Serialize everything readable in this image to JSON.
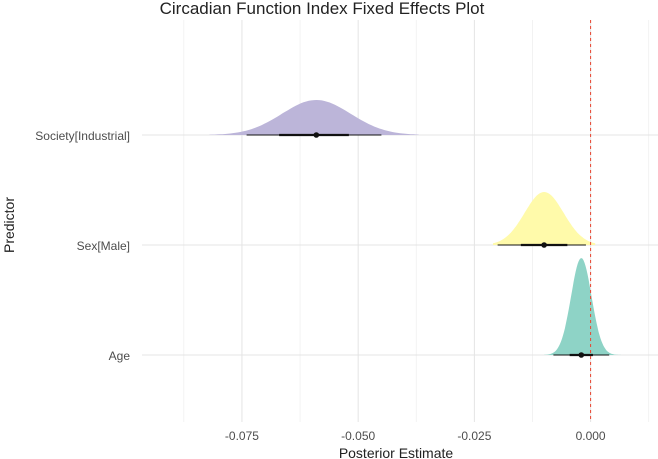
{
  "chart_data": {
    "type": "density",
    "title": "Circadian Function Index Fixed Effects Plot",
    "xlabel": "Posterior Estimate",
    "ylabel": "Predictor",
    "xlim": [
      -0.0965,
      0.0145
    ],
    "x_ticks": [
      -0.075,
      -0.05,
      -0.025,
      0.0
    ],
    "x_tick_labels": [
      "-0.075",
      "-0.050",
      "-0.025",
      "0.000"
    ],
    "reference_line": {
      "x": 0.0,
      "color": "#e8442f",
      "style": "dashed"
    },
    "grid": true,
    "legend": "none",
    "series": [
      {
        "predictor": "Society[Industrial]",
        "median": -0.059,
        "ci_inner": [
          -0.067,
          -0.052
        ],
        "ci_outer": [
          -0.074,
          -0.045
        ],
        "sd": 0.0074,
        "range": [
          -0.082,
          -0.037
        ],
        "color": "#bcb5d9"
      },
      {
        "predictor": "Sex[Male]",
        "median": -0.01,
        "ci_inner": [
          -0.015,
          -0.005
        ],
        "ci_outer": [
          -0.02,
          -0.001
        ],
        "sd": 0.0042,
        "range": [
          -0.021,
          0.001
        ],
        "color": "#fffaaa"
      },
      {
        "predictor": "Age",
        "median": -0.002,
        "ci_inner": [
          -0.0045,
          0.0005
        ],
        "ci_outer": [
          -0.008,
          0.004
        ],
        "sd": 0.0022,
        "range": [
          -0.01,
          0.007
        ],
        "color": "#8ed3c6"
      }
    ]
  }
}
